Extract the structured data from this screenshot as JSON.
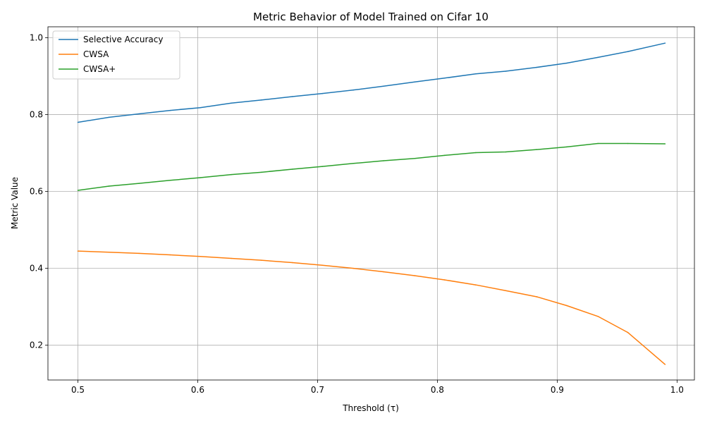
{
  "chart_data": {
    "type": "line",
    "title": "Metric Behavior of Model Trained on Cifar 10",
    "xlabel": "Threshold (τ)",
    "ylabel": "Metric Value",
    "xlim": [
      0.475,
      1.0145
    ],
    "ylim": [
      0.1095,
      1.0285
    ],
    "xticks": [
      "0.5",
      "0.6",
      "0.7",
      "0.8",
      "0.9",
      "1.0"
    ],
    "yticks": [
      "0.2",
      "0.4",
      "0.6",
      "0.8",
      "1.0"
    ],
    "grid": true,
    "legend_position": "top-left",
    "x": [
      0.5,
      0.526,
      0.551,
      0.577,
      0.602,
      0.628,
      0.653,
      0.679,
      0.704,
      0.73,
      0.755,
      0.781,
      0.806,
      0.832,
      0.857,
      0.883,
      0.908,
      0.934,
      0.959,
      0.99
    ],
    "series": [
      {
        "name": "Selective Accuracy",
        "color": "#1f77b4",
        "values": [
          0.78,
          0.793,
          0.802,
          0.811,
          0.818,
          0.83,
          0.838,
          0.847,
          0.855,
          0.864,
          0.874,
          0.885,
          0.895,
          0.906,
          0.913,
          0.923,
          0.934,
          0.949,
          0.964,
          0.986
        ]
      },
      {
        "name": "CWSA",
        "color": "#ff7f0e",
        "values": [
          0.445,
          0.442,
          0.439,
          0.435,
          0.431,
          0.426,
          0.421,
          0.415,
          0.408,
          0.4,
          0.391,
          0.381,
          0.37,
          0.357,
          0.342,
          0.326,
          0.303,
          0.275,
          0.233,
          0.15
        ]
      },
      {
        "name": "CWSA+",
        "color": "#2ca02c",
        "values": [
          0.603,
          0.614,
          0.621,
          0.629,
          0.636,
          0.644,
          0.65,
          0.658,
          0.665,
          0.673,
          0.68,
          0.686,
          0.694,
          0.701,
          0.703,
          0.709,
          0.716,
          0.725,
          0.725,
          0.724
        ]
      }
    ]
  }
}
